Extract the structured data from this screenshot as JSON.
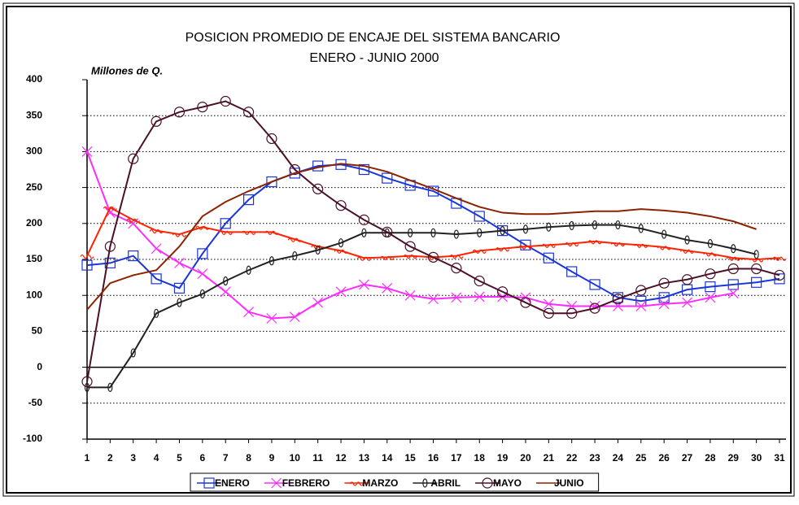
{
  "chart_data": {
    "type": "line",
    "title": "POSICION PROMEDIO DE ENCAJE DEL SISTEMA BANCARIO",
    "subtitle": "ENERO - JUNIO  2000",
    "y_label": "Millones de Q.",
    "x": [
      1,
      2,
      3,
      4,
      5,
      6,
      7,
      8,
      9,
      10,
      11,
      12,
      13,
      14,
      15,
      16,
      17,
      18,
      19,
      20,
      21,
      22,
      23,
      24,
      25,
      26,
      27,
      28,
      29,
      30,
      31
    ],
    "xlim": [
      1,
      31.3
    ],
    "xticks": [
      1,
      2,
      3,
      4,
      5,
      6,
      7,
      8,
      9,
      10,
      11,
      12,
      13,
      14,
      15,
      16,
      17,
      18,
      19,
      20,
      21,
      22,
      23,
      24,
      25,
      26,
      27,
      28,
      29,
      30,
      31
    ],
    "ylim": [
      -100,
      400
    ],
    "yticks": [
      -100,
      -50,
      0,
      50,
      100,
      150,
      200,
      250,
      300,
      350,
      400
    ],
    "grid": true,
    "legend": "bottom",
    "series": [
      {
        "name": "ENERO",
        "color": "#1a35d8",
        "marker": "square",
        "values": [
          142,
          145,
          155,
          123,
          110,
          158,
          200,
          233,
          258,
          270,
          280,
          282,
          275,
          263,
          253,
          245,
          228,
          210,
          190,
          170,
          152,
          133,
          115,
          97,
          92,
          97,
          108,
          112,
          115,
          118,
          123
        ]
      },
      {
        "name": "FEBRERO",
        "color": "#ff2cff",
        "marker": "cross",
        "values": [
          300,
          215,
          200,
          165,
          145,
          130,
          105,
          77,
          68,
          70,
          90,
          105,
          115,
          110,
          100,
          95,
          97,
          98,
          98,
          97,
          88,
          85,
          85,
          85,
          85,
          88,
          90,
          97,
          103,
          null,
          null
        ]
      },
      {
        "name": "MARZO",
        "color": "#ff2200",
        "marker": "wave",
        "values": [
          155,
          222,
          205,
          190,
          185,
          195,
          188,
          188,
          188,
          178,
          168,
          162,
          152,
          153,
          155,
          153,
          155,
          162,
          165,
          168,
          170,
          172,
          175,
          172,
          170,
          167,
          162,
          158,
          152,
          150,
          152
        ]
      },
      {
        "name": "ABRIL",
        "color": "#222222",
        "marker": "ellipse",
        "values": [
          -28,
          -28,
          20,
          75,
          90,
          102,
          120,
          135,
          148,
          155,
          163,
          173,
          187,
          187,
          187,
          187,
          185,
          187,
          190,
          192,
          195,
          197,
          198,
          198,
          193,
          185,
          177,
          172,
          165,
          157,
          null
        ]
      },
      {
        "name": "MAYO",
        "color": "#4a1028",
        "marker": "circle",
        "values": [
          -20,
          168,
          290,
          342,
          355,
          362,
          370,
          355,
          318,
          275,
          248,
          225,
          205,
          188,
          168,
          153,
          138,
          120,
          105,
          90,
          75,
          75,
          82,
          95,
          107,
          117,
          122,
          130,
          137,
          137,
          128
        ]
      },
      {
        "name": "JUNIO",
        "color": "#8b2200",
        "marker": "none",
        "values": [
          80,
          117,
          128,
          135,
          168,
          210,
          230,
          245,
          258,
          270,
          278,
          283,
          280,
          272,
          260,
          248,
          235,
          223,
          215,
          213,
          213,
          215,
          217,
          217,
          220,
          218,
          215,
          210,
          203,
          192,
          null
        ]
      }
    ]
  }
}
